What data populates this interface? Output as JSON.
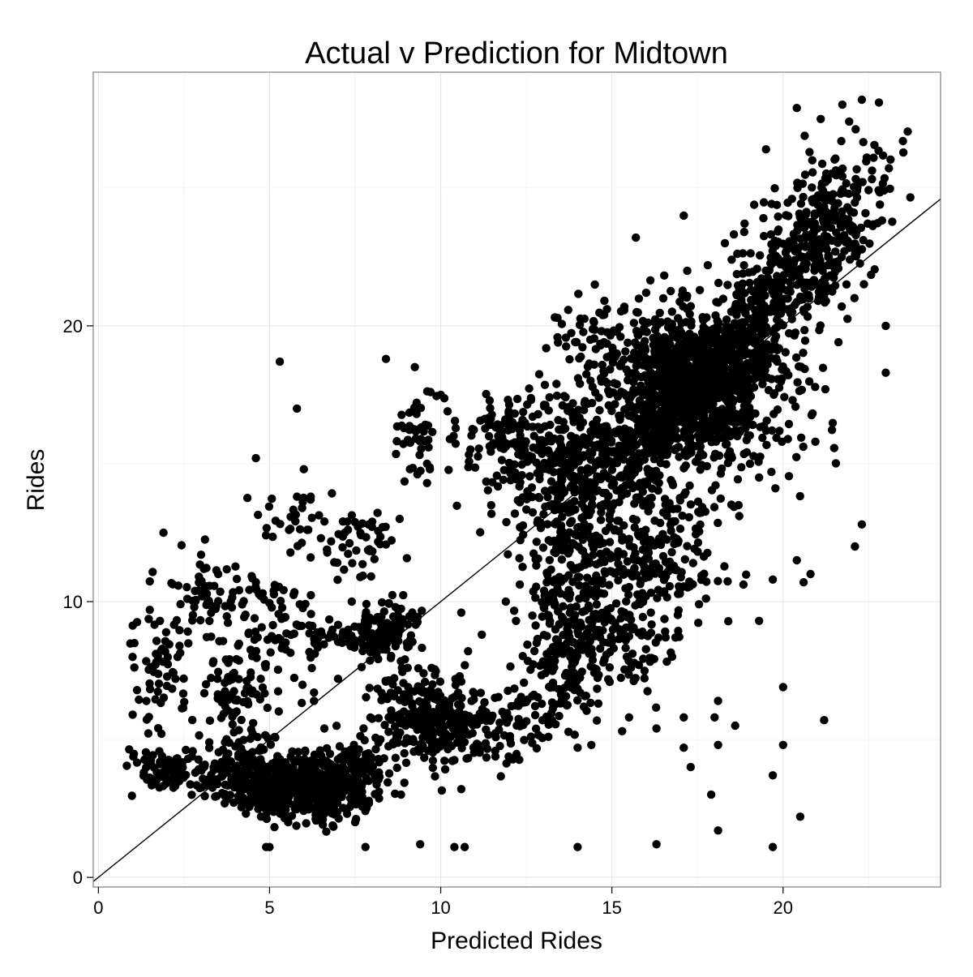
{
  "chart_data": {
    "type": "scatter",
    "title": "Actual v Prediction for Midtown",
    "xlabel": "Predicted Rides",
    "ylabel": "Rides",
    "xlim": [
      -0.15,
      24.6
    ],
    "ylim": [
      -0.35,
      29.2
    ],
    "xticks": [
      {
        "value": 0,
        "label": "0"
      },
      {
        "value": 5,
        "label": "5"
      },
      {
        "value": 10,
        "label": "10"
      },
      {
        "value": 15,
        "label": "15"
      },
      {
        "value": 20,
        "label": "20"
      }
    ],
    "yticks": [
      {
        "value": 0,
        "label": "0"
      },
      {
        "value": 10,
        "label": "10"
      },
      {
        "value": 20,
        "label": "20"
      }
    ],
    "grid": true,
    "reference_line": {
      "type": "identity",
      "slope": 1,
      "intercept": 0
    },
    "colors": {
      "points": "#000000",
      "line": "#000000",
      "grid": "#ebebeb",
      "border": "#7f7f7f"
    },
    "series": [
      {
        "clusters": [
          {
            "cx": 17.2,
            "cy": 17.8,
            "sx": 1.0,
            "sy": 1.3,
            "r": -0.2,
            "n": 900
          },
          {
            "cx": 18.3,
            "cy": 18.5,
            "sx": 0.8,
            "sy": 0.9,
            "r": 0.2,
            "n": 250
          },
          {
            "cx": 21.0,
            "cy": 23.0,
            "sx": 1.1,
            "sy": 1.6,
            "r": 0.55,
            "n": 420
          },
          {
            "cx": 19.2,
            "cy": 20.5,
            "sx": 0.9,
            "sy": 1.1,
            "r": 0.5,
            "n": 150
          },
          {
            "cx": 15.0,
            "cy": 15.2,
            "sx": 1.1,
            "sy": 1.3,
            "r": 0.1,
            "n": 300
          },
          {
            "cx": 13.2,
            "cy": 15.0,
            "sx": 0.9,
            "sy": 1.5,
            "r": 0.0,
            "n": 180
          },
          {
            "cx": 12.0,
            "cy": 15.8,
            "sx": 0.7,
            "sy": 0.8,
            "r": 0.0,
            "n": 90
          },
          {
            "cx": 14.0,
            "cy": 11.5,
            "sx": 0.8,
            "sy": 1.7,
            "r": 0.0,
            "n": 220
          },
          {
            "cx": 16.3,
            "cy": 11.8,
            "sx": 1.0,
            "sy": 1.7,
            "r": 0.0,
            "n": 230
          },
          {
            "cx": 13.8,
            "cy": 8.5,
            "sx": 0.6,
            "sy": 1.3,
            "r": 0.0,
            "n": 130
          },
          {
            "cx": 15.3,
            "cy": 8.5,
            "sx": 0.7,
            "sy": 1.0,
            "r": 0.0,
            "n": 70
          },
          {
            "cx": 12.5,
            "cy": 6.0,
            "sx": 0.7,
            "sy": 0.8,
            "r": 0.0,
            "n": 70
          },
          {
            "cx": 5.8,
            "cy": 3.3,
            "sx": 0.8,
            "sy": 0.55,
            "r": -0.1,
            "n": 450
          },
          {
            "cx": 4.3,
            "cy": 3.8,
            "sx": 0.7,
            "sy": 0.6,
            "r": 0.0,
            "n": 160
          },
          {
            "cx": 7.4,
            "cy": 3.7,
            "sx": 0.6,
            "sy": 0.7,
            "r": 0.2,
            "n": 170
          },
          {
            "cx": 2.2,
            "cy": 3.9,
            "sx": 0.8,
            "sy": 0.35,
            "r": 0.0,
            "n": 90
          },
          {
            "cx": 8.4,
            "cy": 8.9,
            "sx": 0.45,
            "sy": 0.45,
            "r": 0.3,
            "n": 130
          },
          {
            "cx": 7.2,
            "cy": 8.7,
            "sx": 0.7,
            "sy": 0.3,
            "r": 0.0,
            "n": 50
          },
          {
            "cx": 9.8,
            "cy": 5.7,
            "sx": 0.6,
            "sy": 0.75,
            "r": 0.0,
            "n": 160
          },
          {
            "cx": 11.0,
            "cy": 5.1,
            "sx": 0.6,
            "sy": 0.6,
            "r": 0.0,
            "n": 70
          },
          {
            "cx": 8.8,
            "cy": 6.3,
            "sx": 0.5,
            "sy": 0.9,
            "r": 0.0,
            "n": 70
          },
          {
            "cx": 1.8,
            "cy": 7.6,
            "sx": 0.45,
            "sy": 1.0,
            "r": 0.0,
            "n": 60
          },
          {
            "cx": 3.2,
            "cy": 10.3,
            "sx": 0.6,
            "sy": 0.8,
            "r": 0.0,
            "n": 60
          },
          {
            "cx": 4.1,
            "cy": 6.7,
            "sx": 0.5,
            "sy": 0.9,
            "r": 0.0,
            "n": 80
          },
          {
            "cx": 5.3,
            "cy": 8.8,
            "sx": 0.7,
            "sy": 1.2,
            "r": 0.0,
            "n": 70
          },
          {
            "cx": 7.6,
            "cy": 12.0,
            "sx": 0.5,
            "sy": 0.6,
            "r": 0.0,
            "n": 45
          },
          {
            "cx": 5.6,
            "cy": 13.0,
            "sx": 0.5,
            "sy": 0.7,
            "r": 0.0,
            "n": 30
          },
          {
            "cx": 9.3,
            "cy": 16.2,
            "sx": 0.4,
            "sy": 0.8,
            "r": 0.0,
            "n": 45
          },
          {
            "cx": 14.6,
            "cy": 19.5,
            "sx": 0.7,
            "sy": 0.8,
            "r": 0.0,
            "n": 50
          },
          {
            "cx": 20.5,
            "cy": 16.5,
            "sx": 0.8,
            "sy": 1.5,
            "r": 0.0,
            "n": 45
          }
        ],
        "points": [
          [
            5.3,
            18.7
          ],
          [
            5.8,
            17.0
          ],
          [
            8.4,
            18.8
          ],
          [
            4.6,
            15.2
          ],
          [
            1.9,
            12.5
          ],
          [
            1.0,
            5.9
          ],
          [
            4.9,
            1.1
          ],
          [
            5.0,
            1.1
          ],
          [
            7.8,
            1.1
          ],
          [
            9.4,
            1.2
          ],
          [
            10.4,
            1.1
          ],
          [
            10.7,
            1.1
          ],
          [
            10.6,
            3.2
          ],
          [
            14.0,
            1.1
          ],
          [
            16.3,
            1.2
          ],
          [
            18.1,
            1.7
          ],
          [
            19.7,
            1.1
          ],
          [
            20.5,
            2.2
          ],
          [
            17.9,
            3.0
          ],
          [
            17.3,
            4.0
          ],
          [
            17.1,
            4.7
          ],
          [
            18.1,
            4.8
          ],
          [
            20.0,
            4.8
          ],
          [
            19.7,
            3.7
          ],
          [
            16.3,
            5.4
          ],
          [
            17.1,
            5.8
          ],
          [
            18.0,
            5.8
          ],
          [
            18.6,
            5.5
          ],
          [
            18.1,
            6.4
          ],
          [
            20.0,
            6.9
          ],
          [
            21.2,
            5.7
          ],
          [
            14.0,
            4.7
          ],
          [
            14.4,
            4.8
          ],
          [
            15.3,
            5.3
          ],
          [
            15.5,
            5.8
          ],
          [
            11.8,
            6.0
          ],
          [
            11.8,
            15.9
          ],
          [
            12.1,
            16.5
          ],
          [
            14.5,
            21.5
          ],
          [
            15.7,
            23.2
          ],
          [
            17.1,
            24.0
          ],
          [
            20.6,
            10.7
          ],
          [
            20.8,
            11.0
          ],
          [
            22.1,
            12.0
          ],
          [
            22.3,
            12.8
          ],
          [
            23.0,
            18.3
          ],
          [
            23.0,
            20.0
          ],
          [
            22.3,
            28.2
          ],
          [
            22.8,
            28.1
          ],
          [
            23.5,
            26.7
          ],
          [
            21.1,
            27.5
          ],
          [
            20.4,
            27.9
          ],
          [
            19.5,
            26.4
          ],
          [
            21.7,
            26.7
          ],
          [
            17.2,
            22.0
          ],
          [
            17.8,
            22.2
          ],
          [
            18.3,
            23.0
          ],
          [
            18.5,
            22.4
          ],
          [
            16.5,
            21.0
          ],
          [
            16.0,
            21.2
          ],
          [
            19.3,
            9.3
          ],
          [
            19.7,
            10.8
          ],
          [
            20.4,
            11.5
          ],
          [
            18.7,
            13.5
          ],
          [
            19.3,
            14.5
          ],
          [
            10.0,
            17.5
          ],
          [
            10.2,
            16.9
          ],
          [
            9.7,
            17.6
          ],
          [
            9.1,
            14.8
          ],
          [
            9.6,
            15.0
          ],
          [
            9.6,
            14.3
          ],
          [
            8.8,
            13.0
          ],
          [
            6.2,
            13.7
          ],
          [
            6.0,
            14.8
          ],
          [
            2.8,
            9.8
          ],
          [
            3.0,
            11.7
          ],
          [
            2.6,
            10.1
          ],
          [
            1.8,
            9.3
          ],
          [
            1.5,
            9.7
          ],
          [
            3.5,
            11.0
          ],
          [
            4.6,
            10.7
          ],
          [
            4.8,
            10.3
          ],
          [
            6.5,
            12.3
          ],
          [
            6.2,
            11.6
          ],
          [
            7.4,
            10.0
          ],
          [
            8.0,
            12.9
          ],
          [
            8.3,
            12.7
          ],
          [
            7.2,
            12.5
          ],
          [
            6.3,
            6.7
          ],
          [
            6.3,
            6.4
          ],
          [
            6.6,
            5.4
          ],
          [
            7.0,
            7.2
          ],
          [
            8.6,
            7.0
          ],
          [
            9.5,
            7.4
          ],
          [
            9.1,
            8.6
          ],
          [
            10.6,
            7.1
          ],
          [
            10.8,
            8.2
          ],
          [
            10.6,
            9.6
          ],
          [
            11.2,
            8.8
          ],
          [
            12.8,
            8.5
          ],
          [
            12.2,
            9.3
          ],
          [
            11.9,
            10.0
          ]
        ]
      }
    ]
  }
}
